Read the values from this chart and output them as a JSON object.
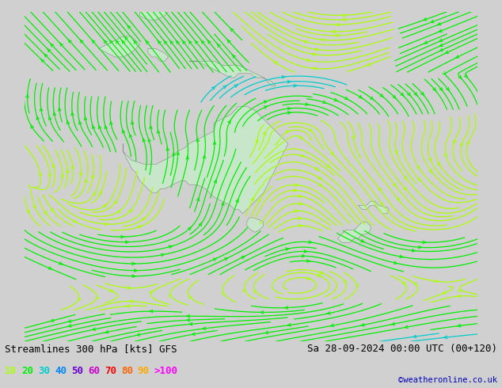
{
  "title_left": "Streamlines 300 hPa [kts] GFS",
  "title_right": "Sa 28-09-2024 00:00 UTC (00+120)",
  "credit": "©weatheronline.co.uk",
  "background_color": "#d0d0d0",
  "land_color": "#c8e6c9",
  "ocean_color": "#d0d0d0",
  "legend_values": [
    "10",
    "20",
    "30",
    "40",
    "50",
    "60",
    "70",
    "80",
    "90",
    ">100"
  ],
  "legend_colors": [
    "#aaff00",
    "#00ee00",
    "#00cccc",
    "#0088ff",
    "#6600cc",
    "#cc00cc",
    "#ff0000",
    "#ff6600",
    "#ffaa00",
    "#ff00ff"
  ],
  "speed_levels": [
    0,
    10,
    20,
    30,
    40,
    50,
    60,
    70,
    80,
    90,
    100,
    999
  ],
  "speed_colors": [
    "#aaff00",
    "#00ee00",
    "#00cccc",
    "#0088ff",
    "#6600cc",
    "#cc00cc",
    "#ff0000",
    "#ff6600",
    "#ffaa00",
    "#ff00ff",
    "#ff00ff"
  ],
  "extent": [
    90,
    200,
    -70,
    10
  ],
  "figsize": [
    6.34,
    4.9
  ],
  "dpi": 100,
  "title_fontsize": 9,
  "legend_fontsize": 9
}
